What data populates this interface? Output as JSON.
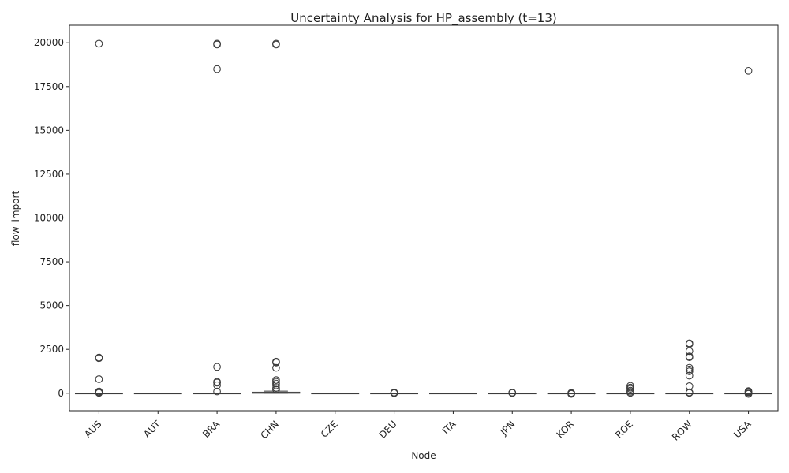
{
  "chart_data": {
    "type": "box",
    "title": "Uncertainty Analysis for HP_assembly (t=13)",
    "xlabel": "Node",
    "ylabel": "flow_import",
    "ylim": [
      -1000,
      21000
    ],
    "yticks": [
      0,
      2500,
      5000,
      7500,
      10000,
      12500,
      15000,
      17500,
      20000
    ],
    "categories": [
      "AUS",
      "AUT",
      "BRA",
      "CHN",
      "CZE",
      "DEU",
      "ITA",
      "JPN",
      "KOR",
      "ROE",
      "ROW",
      "USA"
    ],
    "boxes": [
      {
        "node": "AUS",
        "q1": 0,
        "median": 0,
        "q3": 0,
        "whisker_low": 0,
        "whisker_high": 0,
        "outliers": [
          19950,
          2000,
          2030,
          800,
          100,
          60,
          20
        ]
      },
      {
        "node": "AUT",
        "q1": 0,
        "median": 0,
        "q3": 0,
        "whisker_low": 0,
        "whisker_high": 0,
        "outliers": []
      },
      {
        "node": "BRA",
        "q1": 0,
        "median": 0,
        "q3": 0,
        "whisker_low": 0,
        "whisker_high": 0,
        "outliers": [
          19950,
          19900,
          18500,
          1500,
          650,
          600,
          450,
          100
        ]
      },
      {
        "node": "CHN",
        "q1": 0,
        "median": 10,
        "q3": 60,
        "whisker_low": 0,
        "whisker_high": 120,
        "outliers": [
          19950,
          19900,
          1800,
          1750,
          1450,
          750,
          650,
          550,
          450,
          300,
          200
        ]
      },
      {
        "node": "CZE",
        "q1": 0,
        "median": 0,
        "q3": 0,
        "whisker_low": 0,
        "whisker_high": 0,
        "outliers": []
      },
      {
        "node": "DEU",
        "q1": 0,
        "median": 0,
        "q3": 0,
        "whisker_low": 0,
        "whisker_high": 0,
        "outliers": [
          40,
          20,
          10,
          5
        ]
      },
      {
        "node": "ITA",
        "q1": 0,
        "median": 0,
        "q3": 0,
        "whisker_low": 0,
        "whisker_high": 0,
        "outliers": []
      },
      {
        "node": "JPN",
        "q1": 0,
        "median": 0,
        "q3": 0,
        "whisker_low": 0,
        "whisker_high": 0,
        "outliers": [
          40,
          20,
          10
        ]
      },
      {
        "node": "KOR",
        "q1": 0,
        "median": 0,
        "q3": 0,
        "whisker_low": 0,
        "whisker_high": 0,
        "outliers": [
          20,
          -20,
          -40
        ]
      },
      {
        "node": "ROE",
        "q1": 0,
        "median": 0,
        "q3": 0,
        "whisker_low": 0,
        "whisker_high": 0,
        "outliers": [
          420,
          320,
          250,
          150,
          80,
          20
        ]
      },
      {
        "node": "ROW",
        "q1": 0,
        "median": 0,
        "q3": 0,
        "whisker_low": 0,
        "whisker_high": 0,
        "outliers": [
          2850,
          2800,
          2400,
          2100,
          2050,
          1450,
          1350,
          1250,
          1000,
          400,
          50,
          20
        ]
      },
      {
        "node": "USA",
        "q1": 0,
        "median": 0,
        "q3": 0,
        "whisker_low": 0,
        "whisker_high": 0,
        "outliers": [
          18400,
          120,
          80,
          40,
          -20,
          -40
        ]
      }
    ]
  }
}
